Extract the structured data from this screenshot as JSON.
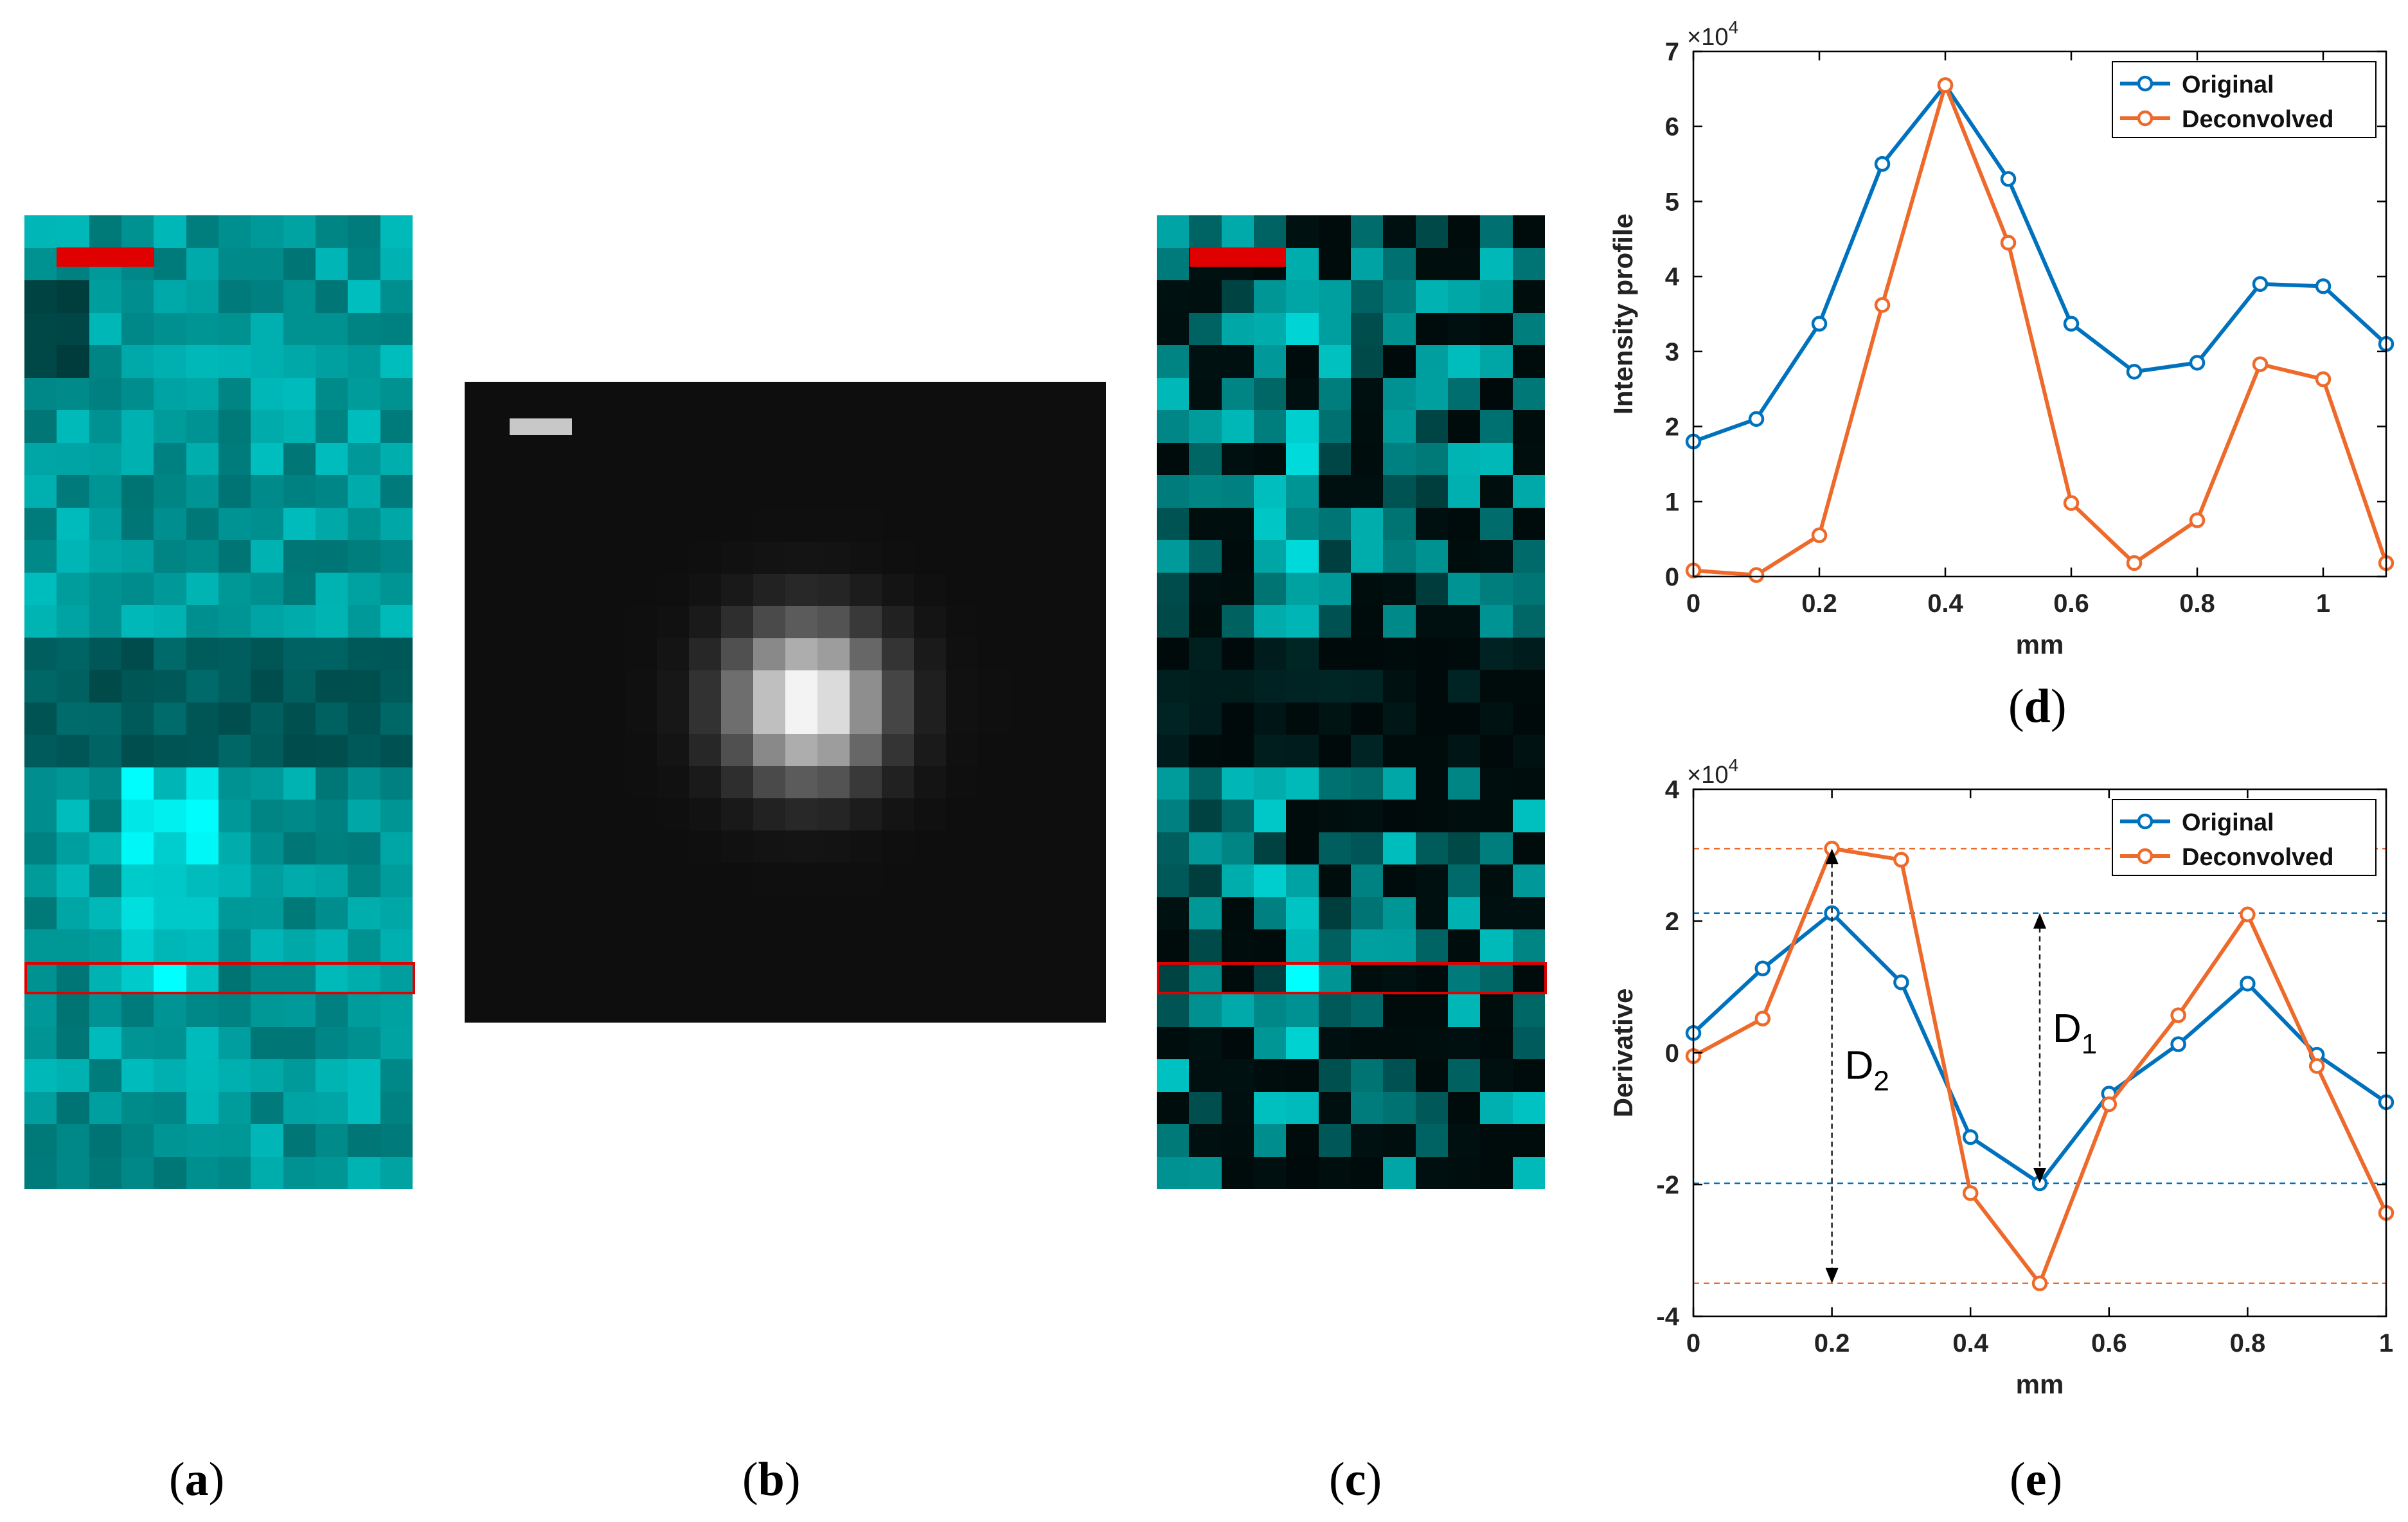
{
  "colors": {
    "original": "#0072BD",
    "deconvolved": "#EE6A2B",
    "roi": "#E00000",
    "scalebar_c": "#E00000",
    "scalebar_b": "#C8C8C8"
  },
  "captions": {
    "a": "a",
    "b": "b",
    "c": "c",
    "d": "d",
    "e": "e"
  },
  "panels": {
    "a": {
      "kind": "microscopy-image",
      "colormap": "cyan",
      "grid_cols": 12,
      "grid_rows": 30
    },
    "b": {
      "kind": "point-spread-function",
      "colormap": "gray",
      "grid_cols": 20,
      "grid_rows": 20
    },
    "c": {
      "kind": "deconvolved-image",
      "colormap": "cyan",
      "grid_cols": 12,
      "grid_rows": 30
    }
  },
  "chart_data": [
    {
      "id": "d",
      "type": "line",
      "title": "",
      "xlabel": "mm",
      "ylabel": "Intensity profile",
      "exponent_label": "×10",
      "exponent": "4",
      "xlim": [
        0,
        1.1
      ],
      "ylim": [
        0,
        7
      ],
      "xticks": [
        0,
        0.2,
        0.4,
        0.6,
        0.8,
        1
      ],
      "xtick_labels": [
        "0",
        "0.2",
        "0.4",
        "0.6",
        "0.8",
        "1"
      ],
      "yticks": [
        0,
        1,
        2,
        3,
        4,
        5,
        6,
        7
      ],
      "ytick_labels": [
        "0",
        "1",
        "2",
        "3",
        "4",
        "5",
        "6",
        "7"
      ],
      "x": [
        0,
        0.1,
        0.2,
        0.3,
        0.4,
        0.5,
        0.6,
        0.7,
        0.8,
        0.9,
        1.0,
        1.1
      ],
      "series": [
        {
          "name": "Original",
          "values": [
            1.8,
            2.1,
            3.37,
            5.5,
            6.55,
            5.3,
            3.37,
            2.73,
            2.85,
            3.9,
            3.87,
            3.1
          ]
        },
        {
          "name": "Deconvolved",
          "values": [
            0.08,
            0.02,
            0.55,
            3.62,
            6.55,
            4.45,
            0.98,
            0.18,
            0.75,
            2.83,
            2.63,
            0.18
          ]
        }
      ],
      "legend": "top-right"
    },
    {
      "id": "e",
      "type": "line",
      "title": "",
      "xlabel": "mm",
      "ylabel": "Derivative",
      "exponent_label": "×10",
      "exponent": "4",
      "xlim": [
        0,
        1
      ],
      "ylim": [
        -4,
        4
      ],
      "xticks": [
        0,
        0.2,
        0.4,
        0.6,
        0.8,
        1
      ],
      "xtick_labels": [
        "0",
        "0.2",
        "0.4",
        "0.6",
        "0.8",
        "1"
      ],
      "yticks": [
        -4,
        -2,
        0,
        2,
        4
      ],
      "ytick_labels": [
        "-4",
        "-2",
        "0",
        "2",
        "4"
      ],
      "x": [
        0,
        0.1,
        0.2,
        0.3,
        0.4,
        0.5,
        0.6,
        0.7,
        0.8,
        0.9,
        1.0
      ],
      "series": [
        {
          "name": "Original",
          "values": [
            0.3,
            1.28,
            2.12,
            1.07,
            -1.28,
            -1.98,
            -0.62,
            0.13,
            1.05,
            -0.03,
            -0.75
          ]
        },
        {
          "name": "Deconvolved",
          "values": [
            -0.05,
            0.52,
            3.1,
            2.93,
            -2.13,
            -3.5,
            -0.78,
            0.57,
            2.1,
            -0.2,
            -2.43
          ]
        }
      ],
      "reference_lines": [
        {
          "series": "Deconvolved",
          "y": 3.1
        },
        {
          "series": "Original",
          "y": 2.12
        },
        {
          "series": "Original",
          "y": -1.98
        },
        {
          "series": "Deconvolved",
          "y": -3.5
        }
      ],
      "annotations": [
        {
          "label": "D",
          "subscript": "2",
          "x": 0.2,
          "from": 3.1,
          "to": -3.5
        },
        {
          "label": "D",
          "subscript": "1",
          "x": 0.5,
          "from": 2.12,
          "to": -1.98
        }
      ],
      "legend": "top-right"
    }
  ]
}
